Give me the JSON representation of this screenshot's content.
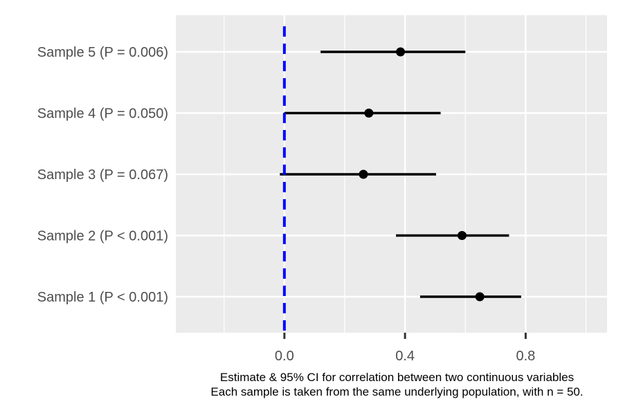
{
  "chart_data": {
    "type": "forest",
    "title": "",
    "xlabel_lines": [
      "Estimate & 95% CI for correlation between two continuous variables",
      "Each sample is taken from the same underlying population, with n = 50."
    ],
    "ylabel": "",
    "xlim": [
      -0.36,
      1.07
    ],
    "x_ticks": [
      0.0,
      0.4,
      0.8
    ],
    "x_tick_labels": [
      "0.0",
      "0.4",
      "0.8"
    ],
    "x_minor_ticks": [
      -0.2,
      0.2,
      0.6,
      1.0
    ],
    "reference_line": {
      "x": 0,
      "color": "#0000ff",
      "style": "dashed"
    },
    "grid": true,
    "background": "#ebebeb",
    "grid_color": "#ffffff",
    "point_color": "#000000",
    "rows": [
      {
        "label": "Sample 1 (P < 0.001)",
        "estimate": 0.648,
        "lower": 0.45,
        "upper": 0.785
      },
      {
        "label": "Sample 2 (P < 0.001)",
        "estimate": 0.589,
        "lower": 0.37,
        "upper": 0.745
      },
      {
        "label": "Sample 3 (P = 0.067)",
        "estimate": 0.262,
        "lower": -0.015,
        "upper": 0.503
      },
      {
        "label": "Sample 4 (P = 0.050)",
        "estimate": 0.28,
        "lower": 0.0,
        "upper": 0.518
      },
      {
        "label": "Sample 5 (P = 0.006)",
        "estimate": 0.385,
        "lower": 0.12,
        "upper": 0.6
      }
    ]
  }
}
